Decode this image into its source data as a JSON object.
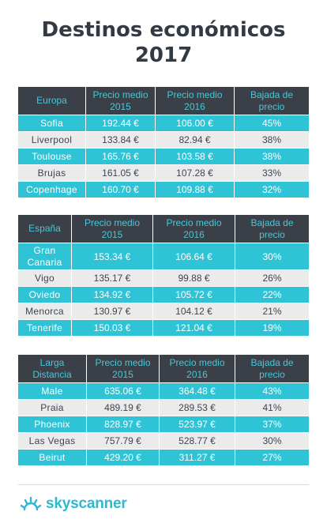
{
  "title": {
    "line1": "Destinos económicos",
    "line2": "2017"
  },
  "tables": [
    {
      "header": [
        "Europa",
        "Precio medio 2015",
        "Precio medio 2016",
        "Bajada de precio"
      ],
      "rows": [
        [
          "Sofia",
          "192.44 €",
          "106.00 €",
          "45%"
        ],
        [
          "Liverpool",
          "133.84 €",
          "82.94 €",
          "38%"
        ],
        [
          "Toulouse",
          "165.76 €",
          "103.58 €",
          "38%"
        ],
        [
          "Brujas",
          "161.05 €",
          "107.28 €",
          "33%"
        ],
        [
          "Copenhage",
          "160.70 €",
          "109.88 €",
          "32%"
        ]
      ]
    },
    {
      "header": [
        "España",
        "Precio medio 2015",
        "Precio medio 2016",
        "Bajada de precio"
      ],
      "rows": [
        [
          "Gran Canaria",
          "153.34 €",
          "106.64 €",
          "30%"
        ],
        [
          "Vigo",
          "135.17 €",
          "99.88 €",
          "26%"
        ],
        [
          "Oviedo",
          "134.92 €",
          "105.72 €",
          "22%"
        ],
        [
          "Menorca",
          "130.97 €",
          "104.12 €",
          "21%"
        ],
        [
          "Tenerife",
          "150.03 €",
          "121.04 €",
          "19%"
        ]
      ]
    },
    {
      "header": [
        "Larga Distancia",
        "Precio medio 2015",
        "Precio medio 2016",
        "Bajada de precio"
      ],
      "rows": [
        [
          "Male",
          "635.06 €",
          "364.48 €",
          "43%"
        ],
        [
          "Praia",
          "489.19 €",
          "289.53 €",
          "41%"
        ],
        [
          "Phoenix",
          "828.97 €",
          "523.97 €",
          "37%"
        ],
        [
          "Las Vegas",
          "757.79 €",
          "528.77 €",
          "30%"
        ],
        [
          "Beirut",
          "429.20 €",
          "311.27 €",
          "27%"
        ]
      ]
    }
  ],
  "footer": {
    "brand": "skyscanner"
  },
  "colors": {
    "accent": "#2fc3d6",
    "header_bg": "#3a3f48",
    "header_text": "#47c8d8",
    "alt_row": "#ebebeb"
  }
}
